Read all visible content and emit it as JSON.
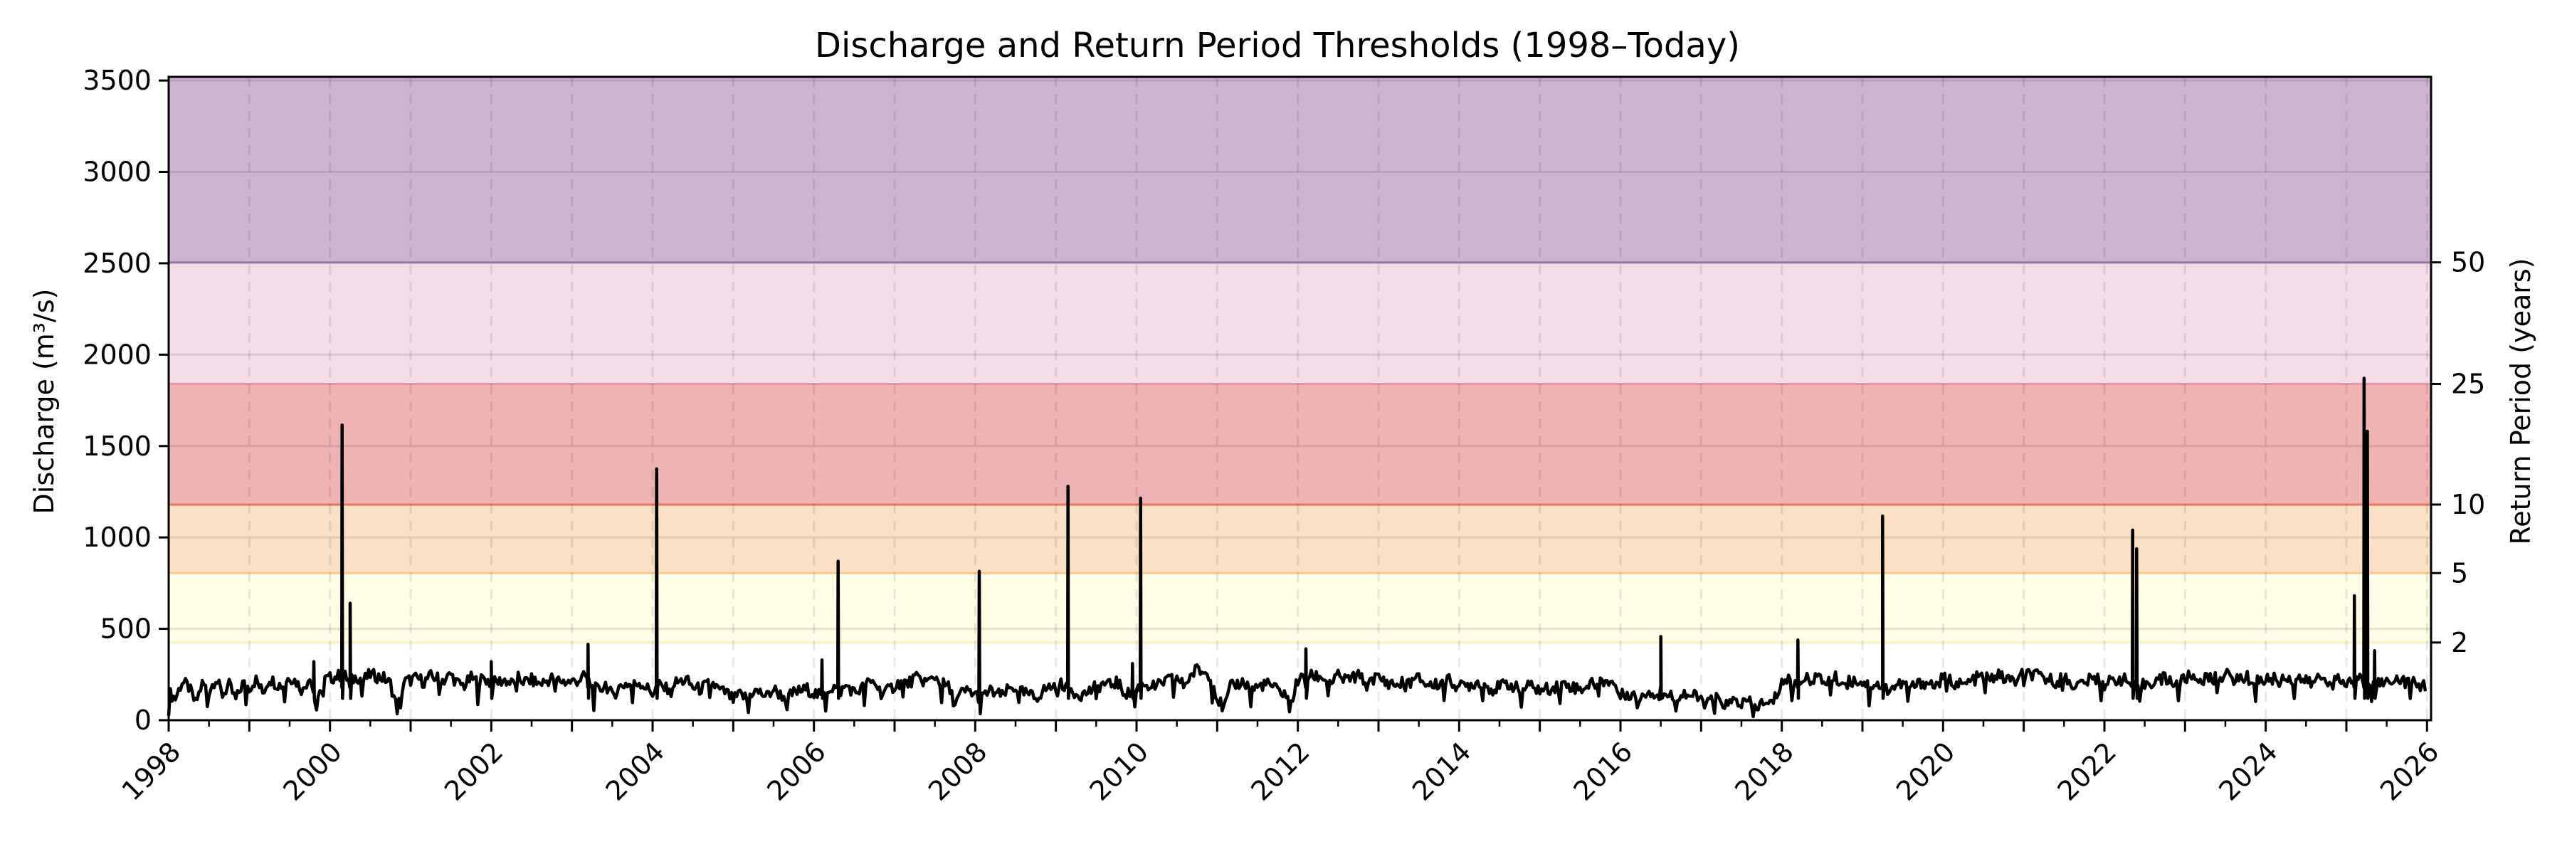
{
  "chart_data": {
    "type": "line",
    "title": "Discharge and Return Period Thresholds (1998–Today)",
    "xlabel": "",
    "ylabel": "Discharge (m³/s)",
    "ylabel_right": "Return Period (years)",
    "xlim": [
      1998.0,
      2026.05
    ],
    "ylim": [
      0,
      3520
    ],
    "grid": true,
    "y_ticks": [
      0,
      500,
      1000,
      1500,
      2000,
      2500,
      3000,
      3500
    ],
    "x_ticks": [
      1998,
      2000,
      2002,
      2004,
      2006,
      2008,
      2010,
      2012,
      2014,
      2016,
      2018,
      2020,
      2022,
      2024,
      2026
    ],
    "x_tick_labels": [
      "1998",
      "2000",
      "2002",
      "2004",
      "2006",
      "2008",
      "2010",
      "2012",
      "2014",
      "2016",
      "2018",
      "2020",
      "2022",
      "2024",
      "2026"
    ],
    "right_axis": {
      "ticks": [
        {
          "label": "2",
          "value": 425
        },
        {
          "label": "5",
          "value": 805
        },
        {
          "label": "10",
          "value": 1180
        },
        {
          "label": "25",
          "value": 1840
        },
        {
          "label": "50",
          "value": 2505
        }
      ]
    },
    "threshold_bands": [
      {
        "name": "2-year",
        "from": 425,
        "to": 805,
        "fill": "#fffde6",
        "edge": "#fdeec0"
      },
      {
        "name": "5-year",
        "from": 805,
        "to": 1180,
        "fill": "#fce0c6",
        "edge": "#fdc98f"
      },
      {
        "name": "10-year",
        "from": 1180,
        "to": 1840,
        "fill": "#f0b3b3",
        "edge": "#e8735e"
      },
      {
        "name": "25-year",
        "from": 1840,
        "to": 2505,
        "fill": "#f4dce8",
        "edge": "#e693a8"
      },
      {
        "name": "50-year",
        "from": 2505,
        "to": 3520,
        "fill": "#cfb3d2",
        "edge": "#a77bb0"
      }
    ],
    "series": [
      {
        "name": "Discharge",
        "color": "#000000",
        "monthly_start": 1998.0,
        "monthly_values": [
          150,
          120,
          210,
          180,
          90,
          200,
          160,
          230,
          140,
          190,
          110,
          200,
          180,
          220,
          150,
          230,
          200,
          190,
          240,
          210,
          160,
          250,
          60,
          220,
          230,
          240,
          250,
          210,
          240,
          220,
          250,
          240,
          230,
          200,
          60,
          210,
          220,
          230,
          210,
          240,
          230,
          220,
          250,
          200,
          190,
          230,
          210,
          230,
          200,
          210,
          220,
          200,
          230,
          210,
          220,
          200,
          210,
          230,
          220,
          210,
          210,
          220,
          240,
          180,
          160,
          200,
          130,
          180,
          200,
          190,
          210,
          180,
          150,
          190,
          170,
          200,
          210,
          220,
          180,
          170,
          190,
          200,
          160,
          150,
          110,
          140,
          120,
          160,
          150,
          130,
          170,
          140,
          120,
          150,
          160,
          170,
          150,
          130,
          170,
          180,
          160,
          190,
          150,
          170,
          200,
          210,
          150,
          160,
          190,
          210,
          200,
          230,
          220,
          210,
          240,
          200,
          180,
          90,
          150,
          160,
          140,
          120,
          160,
          150,
          130,
          170,
          180,
          150,
          140,
          120,
          160,
          180,
          190,
          200,
          170,
          150,
          140,
          160,
          180,
          200,
          190,
          210,
          160,
          140,
          170,
          200,
          190,
          180,
          210,
          220,
          230,
          190,
          240,
          280,
          260,
          250,
          120,
          60,
          180,
          200,
          210,
          170,
          180,
          200,
          190,
          160,
          150,
          100,
          220,
          230,
          240,
          240,
          230,
          210,
          240,
          220,
          230,
          240,
          220,
          230,
          230,
          210,
          200,
          190,
          220,
          210,
          230,
          200,
          190,
          200,
          220,
          210,
          180,
          190,
          200,
          210,
          190,
          170,
          180,
          200,
          190,
          160,
          180,
          190,
          160,
          170,
          180,
          190,
          200,
          180,
          170,
          190,
          200,
          210,
          220,
          200,
          130,
          150,
          140,
          120,
          160,
          150,
          130,
          140,
          120,
          150,
          140,
          130,
          110,
          90,
          120,
          100,
          80,
          110,
          90,
          100,
          70,
          90,
          80,
          120,
          210,
          220,
          200,
          230,
          220,
          240,
          210,
          220,
          230,
          200,
          210,
          220,
          210,
          190,
          200,
          180,
          170,
          190,
          200,
          180,
          190,
          210,
          200,
          190,
          230,
          220,
          200,
          190,
          210,
          230,
          240,
          220,
          250,
          230,
          220,
          210,
          260,
          250,
          240,
          230,
          220,
          210,
          240,
          200,
          190,
          210,
          220,
          230,
          200,
          210,
          230,
          220,
          190,
          160,
          200,
          210,
          220,
          230,
          210,
          200,
          230,
          240,
          220,
          230,
          220,
          240,
          250,
          230,
          220,
          240,
          210,
          220,
          220,
          230,
          210,
          240,
          220,
          230,
          210,
          200,
          240,
          220,
          230,
          210,
          200,
          220,
          230,
          210,
          220,
          200,
          210,
          230,
          220,
          210,
          200,
          190
        ],
        "peaks": [
          {
            "x": 1999.8,
            "y": 320
          },
          {
            "x": 2000.15,
            "y": 1615
          },
          {
            "x": 2000.25,
            "y": 640
          },
          {
            "x": 2002.0,
            "y": 320
          },
          {
            "x": 2003.2,
            "y": 415
          },
          {
            "x": 2004.05,
            "y": 1375
          },
          {
            "x": 2006.1,
            "y": 330
          },
          {
            "x": 2006.3,
            "y": 870
          },
          {
            "x": 2008.05,
            "y": 815
          },
          {
            "x": 2009.15,
            "y": 1280
          },
          {
            "x": 2009.95,
            "y": 310
          },
          {
            "x": 2010.05,
            "y": 1215
          },
          {
            "x": 2012.1,
            "y": 390
          },
          {
            "x": 2016.5,
            "y": 458
          },
          {
            "x": 2018.2,
            "y": 439
          },
          {
            "x": 2019.25,
            "y": 1117
          },
          {
            "x": 2022.35,
            "y": 1040
          },
          {
            "x": 2022.4,
            "y": 938
          },
          {
            "x": 2025.1,
            "y": 681
          },
          {
            "x": 2025.22,
            "y": 1871
          },
          {
            "x": 2025.26,
            "y": 1581
          },
          {
            "x": 2025.35,
            "y": 380
          }
        ]
      }
    ]
  }
}
